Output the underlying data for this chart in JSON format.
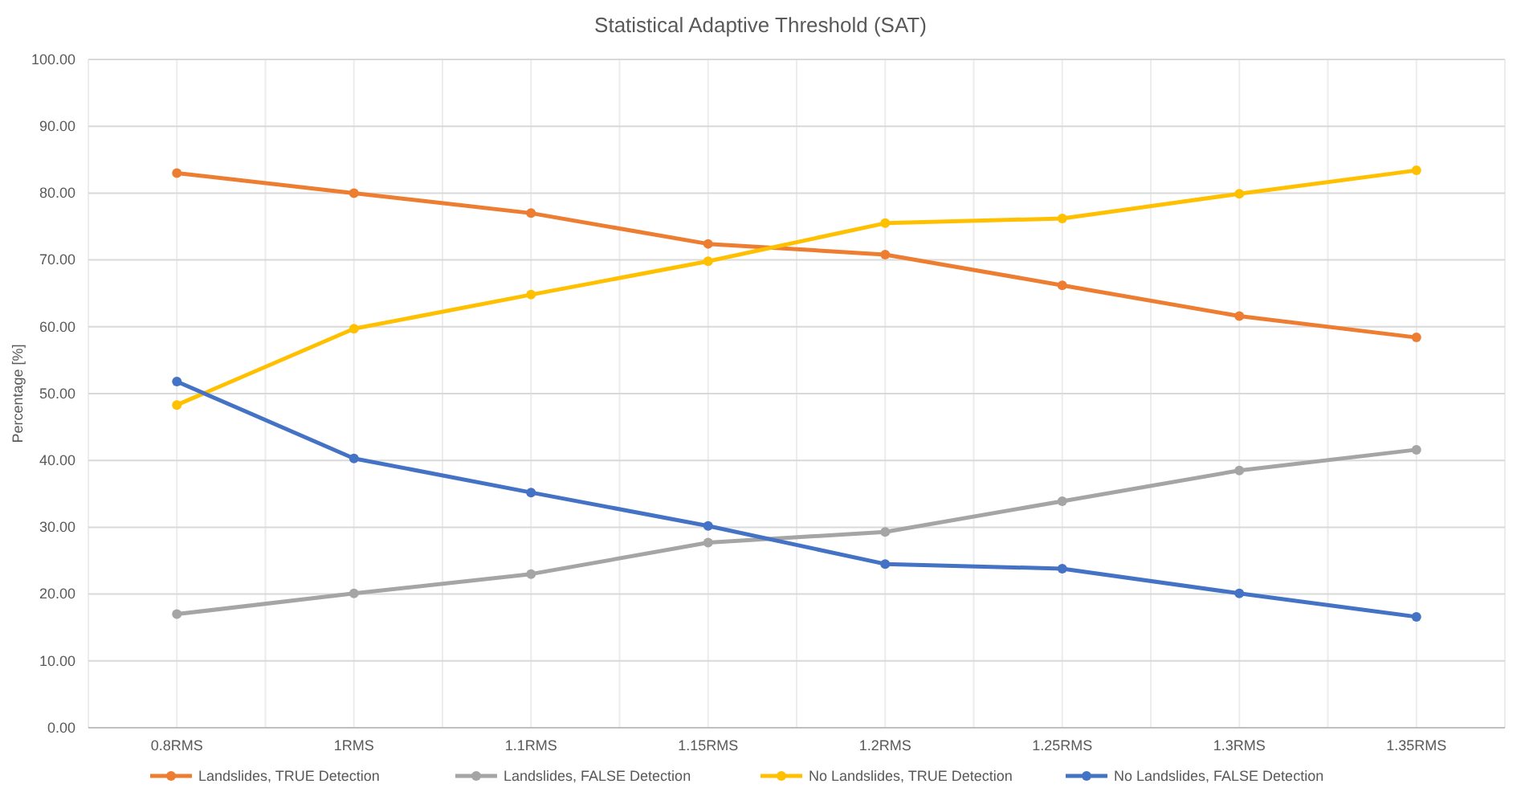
{
  "chart_data": {
    "type": "line",
    "title": "Statistical Adaptive Threshold (SAT)",
    "ylabel": "Percentage [%]",
    "categories": [
      "0.8RMS",
      "1RMS",
      "1.1RMS",
      "1.15RMS",
      "1.2RMS",
      "1.25RMS",
      "1.3RMS",
      "1.35RMS"
    ],
    "series": [
      {
        "name": "Landslides, TRUE Detection",
        "color": "#ed7d31",
        "values": [
          83.0,
          80.0,
          77.0,
          72.4,
          70.8,
          66.2,
          61.6,
          58.4
        ]
      },
      {
        "name": "Landslides, FALSE Detection",
        "color": "#a5a5a5",
        "values": [
          17.0,
          20.1,
          23.0,
          27.7,
          29.3,
          33.9,
          38.5,
          41.6
        ]
      },
      {
        "name": "No Landslides, TRUE Detection",
        "color": "#ffc000",
        "values": [
          48.3,
          59.7,
          64.8,
          69.8,
          75.5,
          76.2,
          79.9,
          83.4
        ]
      },
      {
        "name": "No Landslides, FALSE Detection",
        "color": "#4472c4",
        "values": [
          51.8,
          40.3,
          35.2,
          30.2,
          24.5,
          23.8,
          20.1,
          16.6
        ]
      }
    ],
    "ylim": [
      0,
      100
    ],
    "yticks": [
      {
        "value": 0,
        "label": "0.00"
      },
      {
        "value": 10,
        "label": "10.00"
      },
      {
        "value": 20,
        "label": "20.00"
      },
      {
        "value": 30,
        "label": "30.00"
      },
      {
        "value": 40,
        "label": "40.00"
      },
      {
        "value": 50,
        "label": "50.00"
      },
      {
        "value": 60,
        "label": "60.00"
      },
      {
        "value": 70,
        "label": "70.00"
      },
      {
        "value": 80,
        "label": "80.00"
      },
      {
        "value": 90,
        "label": "90.00"
      },
      {
        "value": 100,
        "label": "100.00"
      }
    ],
    "grid": true,
    "legend": "bottom",
    "marker": "circle",
    "line_style": "solid"
  }
}
